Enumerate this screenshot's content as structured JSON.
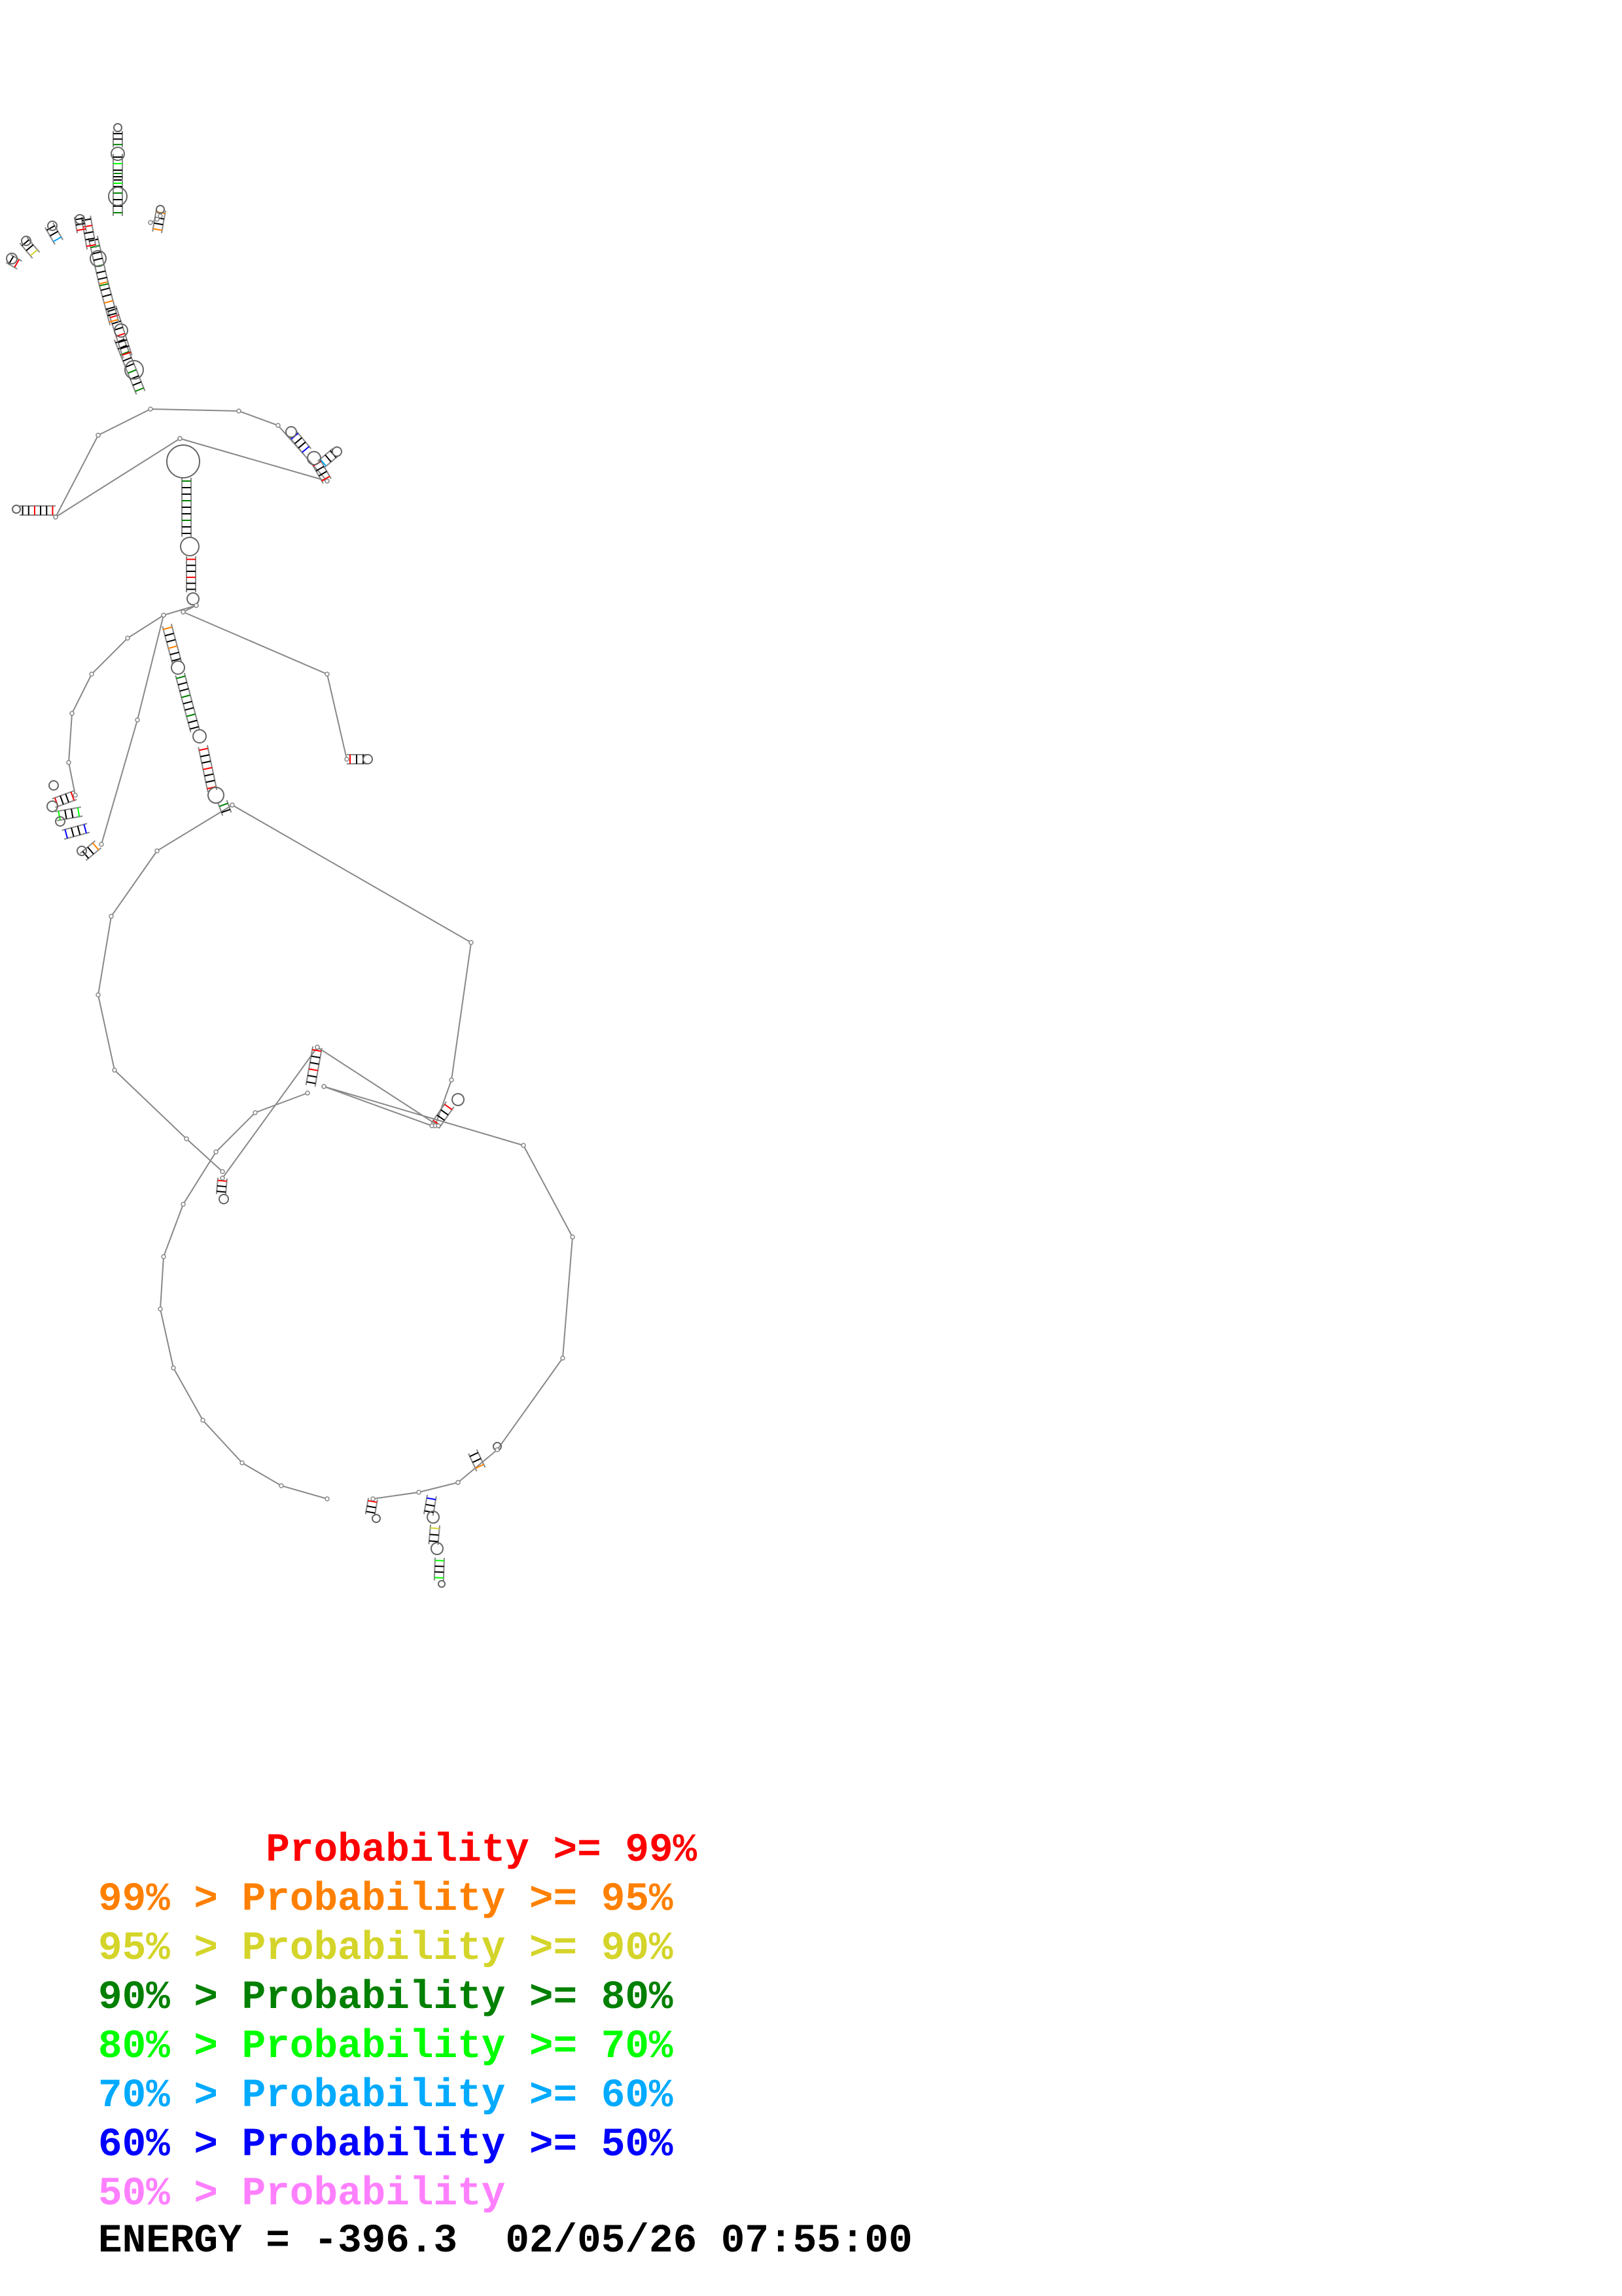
{
  "legend": [
    {
      "prefix": "       ",
      "text": "Probability >= 99%",
      "color": "#ff0000"
    },
    {
      "prefix": "",
      "text": "99% > Probability >= 95%",
      "color": "#ff8000"
    },
    {
      "prefix": "",
      "text": "95% > Probability >= 90%",
      "color": "#d4d42a"
    },
    {
      "prefix": "",
      "text": "90% > Probability >= 80%",
      "color": "#008000"
    },
    {
      "prefix": "",
      "text": "80% > Probability >= 70%",
      "color": "#00ff00"
    },
    {
      "prefix": "",
      "text": "70% > Probability >= 60%",
      "color": "#00aaff"
    },
    {
      "prefix": "",
      "text": "60% > Probability >= 50%",
      "color": "#0000ff"
    },
    {
      "prefix": "",
      "text": "50% > Probability",
      "color": "#ff80ff"
    }
  ],
  "energy": {
    "label": "ENERGY = ",
    "value": "-396.3",
    "timestamp": "02/05/26 07:55:00"
  },
  "structure": {
    "backbone_color": "#888888",
    "base_pair_color": "#000000"
  }
}
